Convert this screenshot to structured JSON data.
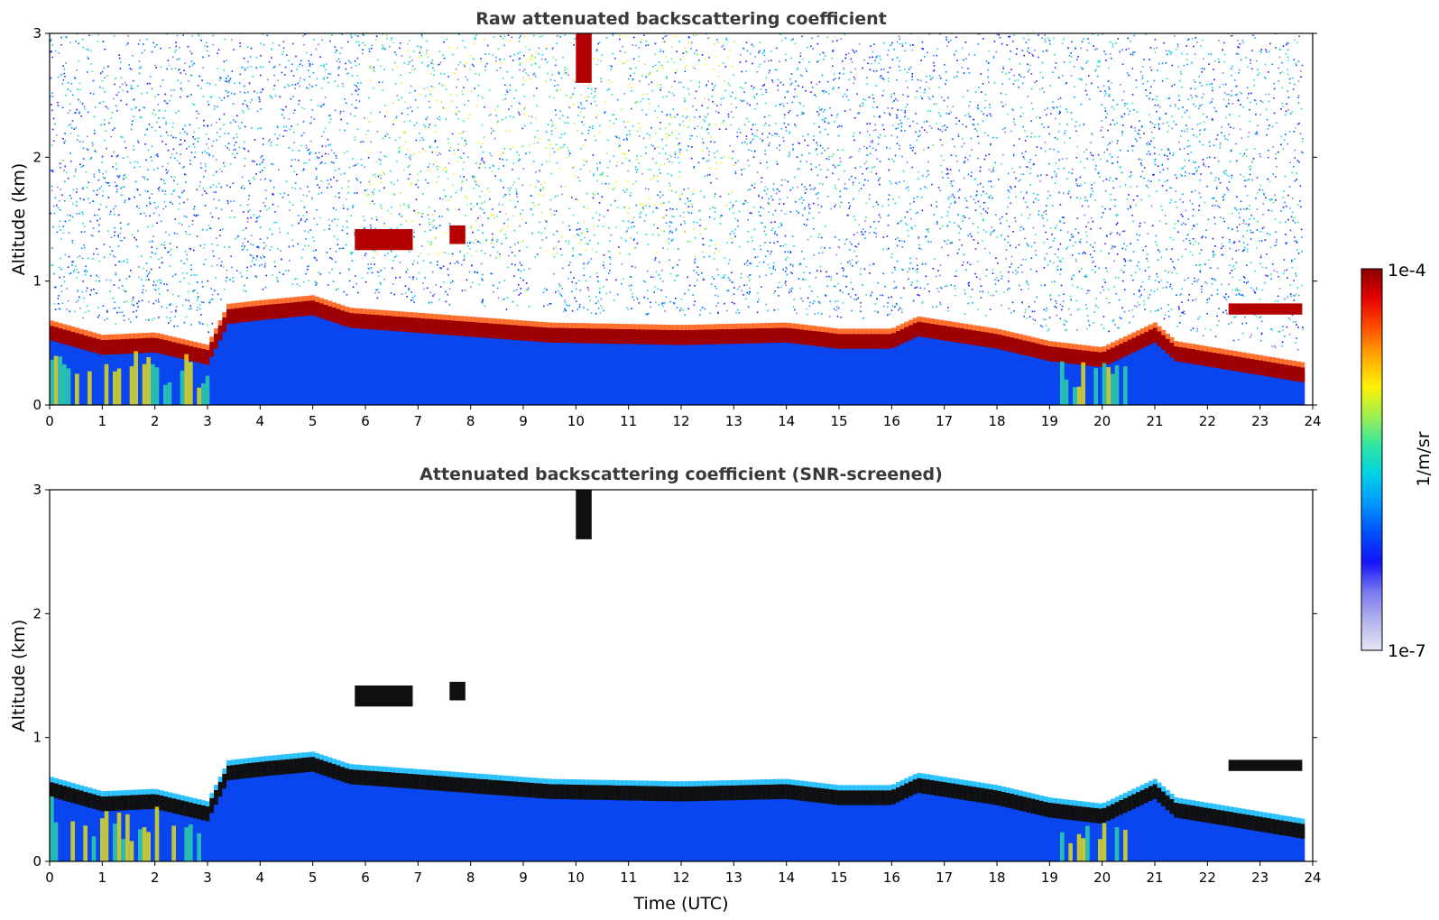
{
  "chart_data": [
    {
      "type": "heatmap",
      "title": "Raw attenuated backscattering coefficient",
      "xlabel": "",
      "ylabel": "Altitude (km)",
      "xlim": [
        0,
        24
      ],
      "ylim": [
        0,
        3
      ],
      "xticks": [
        "0",
        "1",
        "2",
        "3",
        "4",
        "5",
        "6",
        "7",
        "8",
        "9",
        "10",
        "11",
        "12",
        "13",
        "14",
        "15",
        "16",
        "17",
        "18",
        "19",
        "20",
        "21",
        "22",
        "23",
        "24"
      ],
      "yticks": [
        "0",
        "1",
        "2",
        "3"
      ],
      "data_coverage_hours": [
        0,
        23.8
      ],
      "boundary_layer_top_km": [
        {
          "t": 0,
          "z": 0.62
        },
        {
          "t": 1,
          "z": 0.5
        },
        {
          "t": 2,
          "z": 0.52
        },
        {
          "t": 3,
          "z": 0.42
        },
        {
          "t": 3.4,
          "z": 0.75
        },
        {
          "t": 4,
          "z": 0.78
        },
        {
          "t": 5,
          "z": 0.82
        },
        {
          "t": 5.7,
          "z": 0.72
        },
        {
          "t": 9.5,
          "z": 0.6
        },
        {
          "t": 12,
          "z": 0.58
        },
        {
          "t": 14,
          "z": 0.6
        },
        {
          "t": 15,
          "z": 0.55
        },
        {
          "t": 16,
          "z": 0.55
        },
        {
          "t": 16.5,
          "z": 0.65
        },
        {
          "t": 18,
          "z": 0.55
        },
        {
          "t": 19,
          "z": 0.45
        },
        {
          "t": 20,
          "z": 0.4
        },
        {
          "t": 21,
          "z": 0.6
        },
        {
          "t": 21.4,
          "z": 0.45
        },
        {
          "t": 23.8,
          "z": 0.28
        }
      ],
      "cloud_layers": [
        {
          "t_start": 5.8,
          "t_end": 6.9,
          "z_bottom": 1.25,
          "z_top": 1.42
        },
        {
          "t_start": 7.6,
          "t_end": 7.9,
          "z_bottom": 1.3,
          "z_top": 1.45
        },
        {
          "t_start": 10.0,
          "t_end": 10.3,
          "z_bottom": 2.6,
          "z_top": 3.0
        },
        {
          "t_start": 22.4,
          "t_end": 23.8,
          "z_bottom": 0.73,
          "z_top": 0.82
        }
      ]
    },
    {
      "type": "heatmap",
      "title": "Attenuated backscattering coefficient (SNR-screened)",
      "xlabel": "Time (UTC)",
      "ylabel": "Altitude (km)",
      "xlim": [
        0,
        24
      ],
      "ylim": [
        0,
        3
      ],
      "xticks": [
        "0",
        "1",
        "2",
        "3",
        "4",
        "5",
        "6",
        "7",
        "8",
        "9",
        "10",
        "11",
        "12",
        "13",
        "14",
        "15",
        "16",
        "17",
        "18",
        "19",
        "20",
        "21",
        "22",
        "23",
        "24"
      ],
      "yticks": [
        "0",
        "1",
        "2",
        "3"
      ],
      "data_coverage_hours": [
        0,
        23.8
      ]
    }
  ],
  "colorbar": {
    "label": "1/m/sr",
    "max_label": "1e-4",
    "min_label": "1e-7",
    "scale": "log",
    "range": [
      1e-07,
      0.0001
    ],
    "colormap": [
      "#e6e6f5",
      "#b4b4ee",
      "#7878f0",
      "#1414ff",
      "#0050ff",
      "#0096ff",
      "#00d2e6",
      "#32e6a0",
      "#a0f050",
      "#fff000",
      "#ffaa00",
      "#ff5000",
      "#e60000",
      "#8c0000"
    ]
  }
}
